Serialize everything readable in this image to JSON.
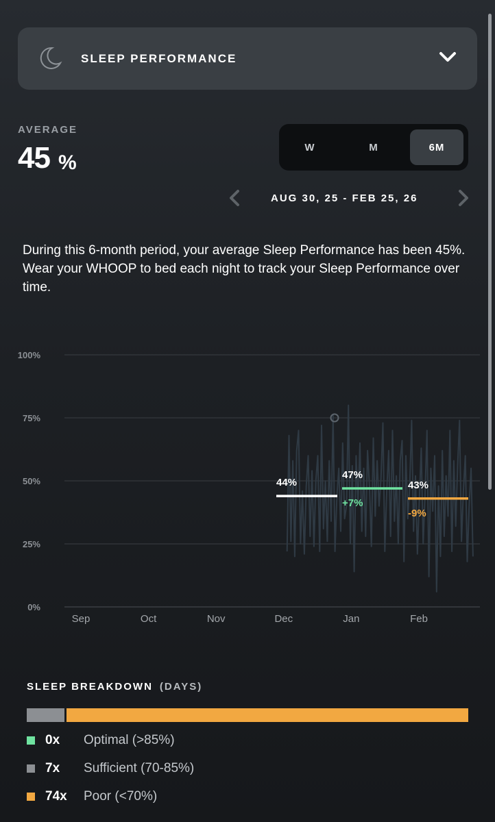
{
  "header": {
    "title": "SLEEP PERFORMANCE",
    "icon": "moon-icon",
    "toggle_icon": "chevron-down-icon"
  },
  "average": {
    "label": "AVERAGE",
    "value": "45",
    "unit": "%"
  },
  "range_tabs": [
    {
      "label": "W",
      "active": false
    },
    {
      "label": "M",
      "active": false
    },
    {
      "label": "6M",
      "active": true
    }
  ],
  "date_range": "AUG 30, 25 - FEB 25, 26",
  "description": "During this 6-month period, your average Sleep Performance has been 45%. Wear your WHOOP to bed each night to track your Sleep Performance over time.",
  "colors": {
    "optimal": "#6fe3a0",
    "sufficient": "#8c8f93",
    "poor": "#f2a841",
    "line": "#2f3a44",
    "grid": "#3a3e43"
  },
  "chart_data": {
    "type": "line",
    "x_ticks": [
      "Sep",
      "Oct",
      "Nov",
      "Dec",
      "Jan",
      "Feb"
    ],
    "y_ticks": [
      "100%",
      "75%",
      "50%",
      "25%",
      "0%"
    ],
    "ylim": [
      0,
      100
    ],
    "daily_series": {
      "values": [
        22,
        68,
        26,
        58,
        20,
        62,
        70,
        25,
        46,
        21,
        48,
        60,
        28,
        54,
        24,
        50,
        60,
        22,
        72,
        31,
        50,
        26,
        58,
        34,
        76,
        22,
        44,
        55,
        30,
        65,
        35,
        40,
        80,
        25,
        56,
        14,
        60,
        41,
        65,
        30,
        55,
        28,
        62,
        48,
        24,
        67,
        36,
        58,
        40,
        51,
        73,
        22,
        46,
        62,
        28,
        70,
        34,
        52,
        25,
        58,
        66,
        18,
        60,
        35,
        48,
        74,
        30,
        52,
        21,
        42,
        63,
        25,
        45,
        70,
        12,
        55,
        38,
        60,
        6,
        48,
        20,
        62,
        28,
        52,
        36,
        70,
        22,
        58,
        32,
        56,
        74,
        26,
        46,
        60,
        18,
        40,
        55,
        20
      ],
      "start_month_index": 3.05,
      "end_month_index": 5.8
    },
    "marker": {
      "value": 75
    },
    "monthly_averages": [
      {
        "label": "44%",
        "value": 44,
        "change": "",
        "color": "#ffffff"
      },
      {
        "label": "47%",
        "value": 47,
        "change": "+7%",
        "color": "#6fe3a0"
      },
      {
        "label": "43%",
        "value": 43,
        "change": "-9%",
        "color": "#f2a841"
      }
    ]
  },
  "breakdown": {
    "title": "SLEEP BREAKDOWN",
    "subtitle": "(DAYS)",
    "segments": [
      {
        "name": "sufficient",
        "days": 7,
        "color": "#8c8f93"
      },
      {
        "name": "poor",
        "days": 74,
        "color": "#f2a841"
      }
    ],
    "legend": [
      {
        "count": "0x",
        "label": "Optimal (>85%)",
        "color": "#6fe3a0"
      },
      {
        "count": "7x",
        "label": "Sufficient (70-85%)",
        "color": "#8c8f93"
      },
      {
        "count": "74x",
        "label": "Poor (<70%)",
        "color": "#f2a841"
      }
    ]
  }
}
